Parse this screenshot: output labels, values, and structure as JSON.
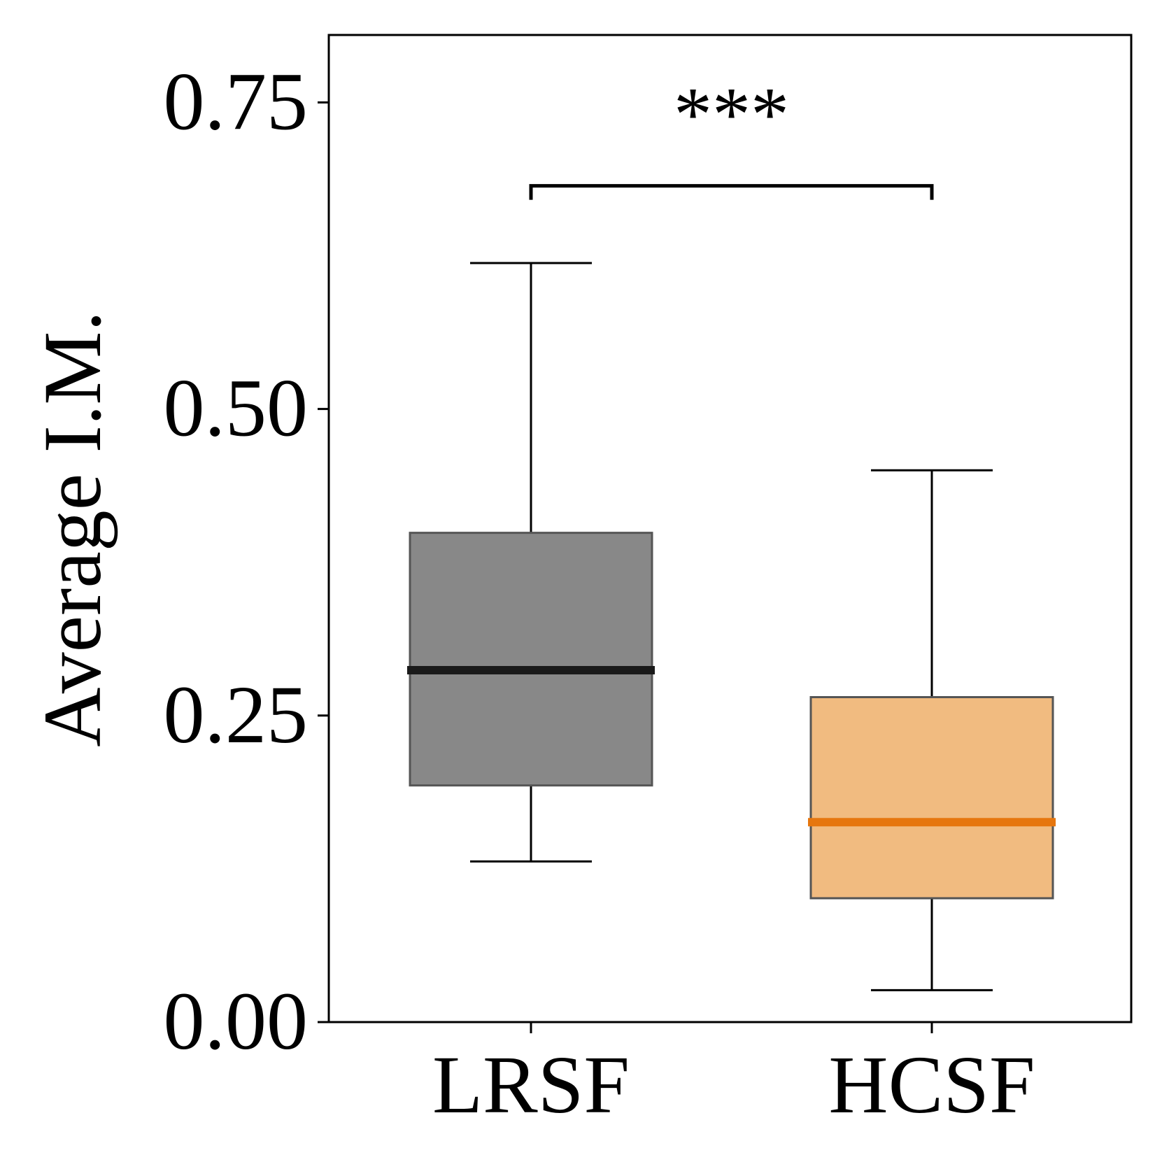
{
  "chart_data": {
    "type": "box",
    "title": "",
    "xlabel": "",
    "ylabel": "Average I.M.",
    "ylim": [
      0.0,
      0.805
    ],
    "yticks": [
      0.0,
      0.25,
      0.5,
      0.75
    ],
    "ytick_labels": [
      "0.00",
      "0.25",
      "0.50",
      "0.75"
    ],
    "categories": [
      "LRSF",
      "HCSF"
    ],
    "boxes": [
      {
        "name": "LRSF",
        "whisker_low": 0.131,
        "q1": 0.193,
        "median": 0.287,
        "q3": 0.399,
        "whisker_high": 0.619,
        "fill_color": "#888888",
        "median_color": "#1a1a1a"
      },
      {
        "name": "HCSF",
        "whisker_low": 0.026,
        "q1": 0.101,
        "median": 0.163,
        "q3": 0.265,
        "whisker_high": 0.45,
        "fill_color": "#f1bb80",
        "median_color": "#e6760e"
      }
    ],
    "significance": {
      "label": "***",
      "between": [
        "LRSF",
        "HCSF"
      ],
      "level": 0.682
    },
    "grid": false,
    "legend": "none"
  }
}
